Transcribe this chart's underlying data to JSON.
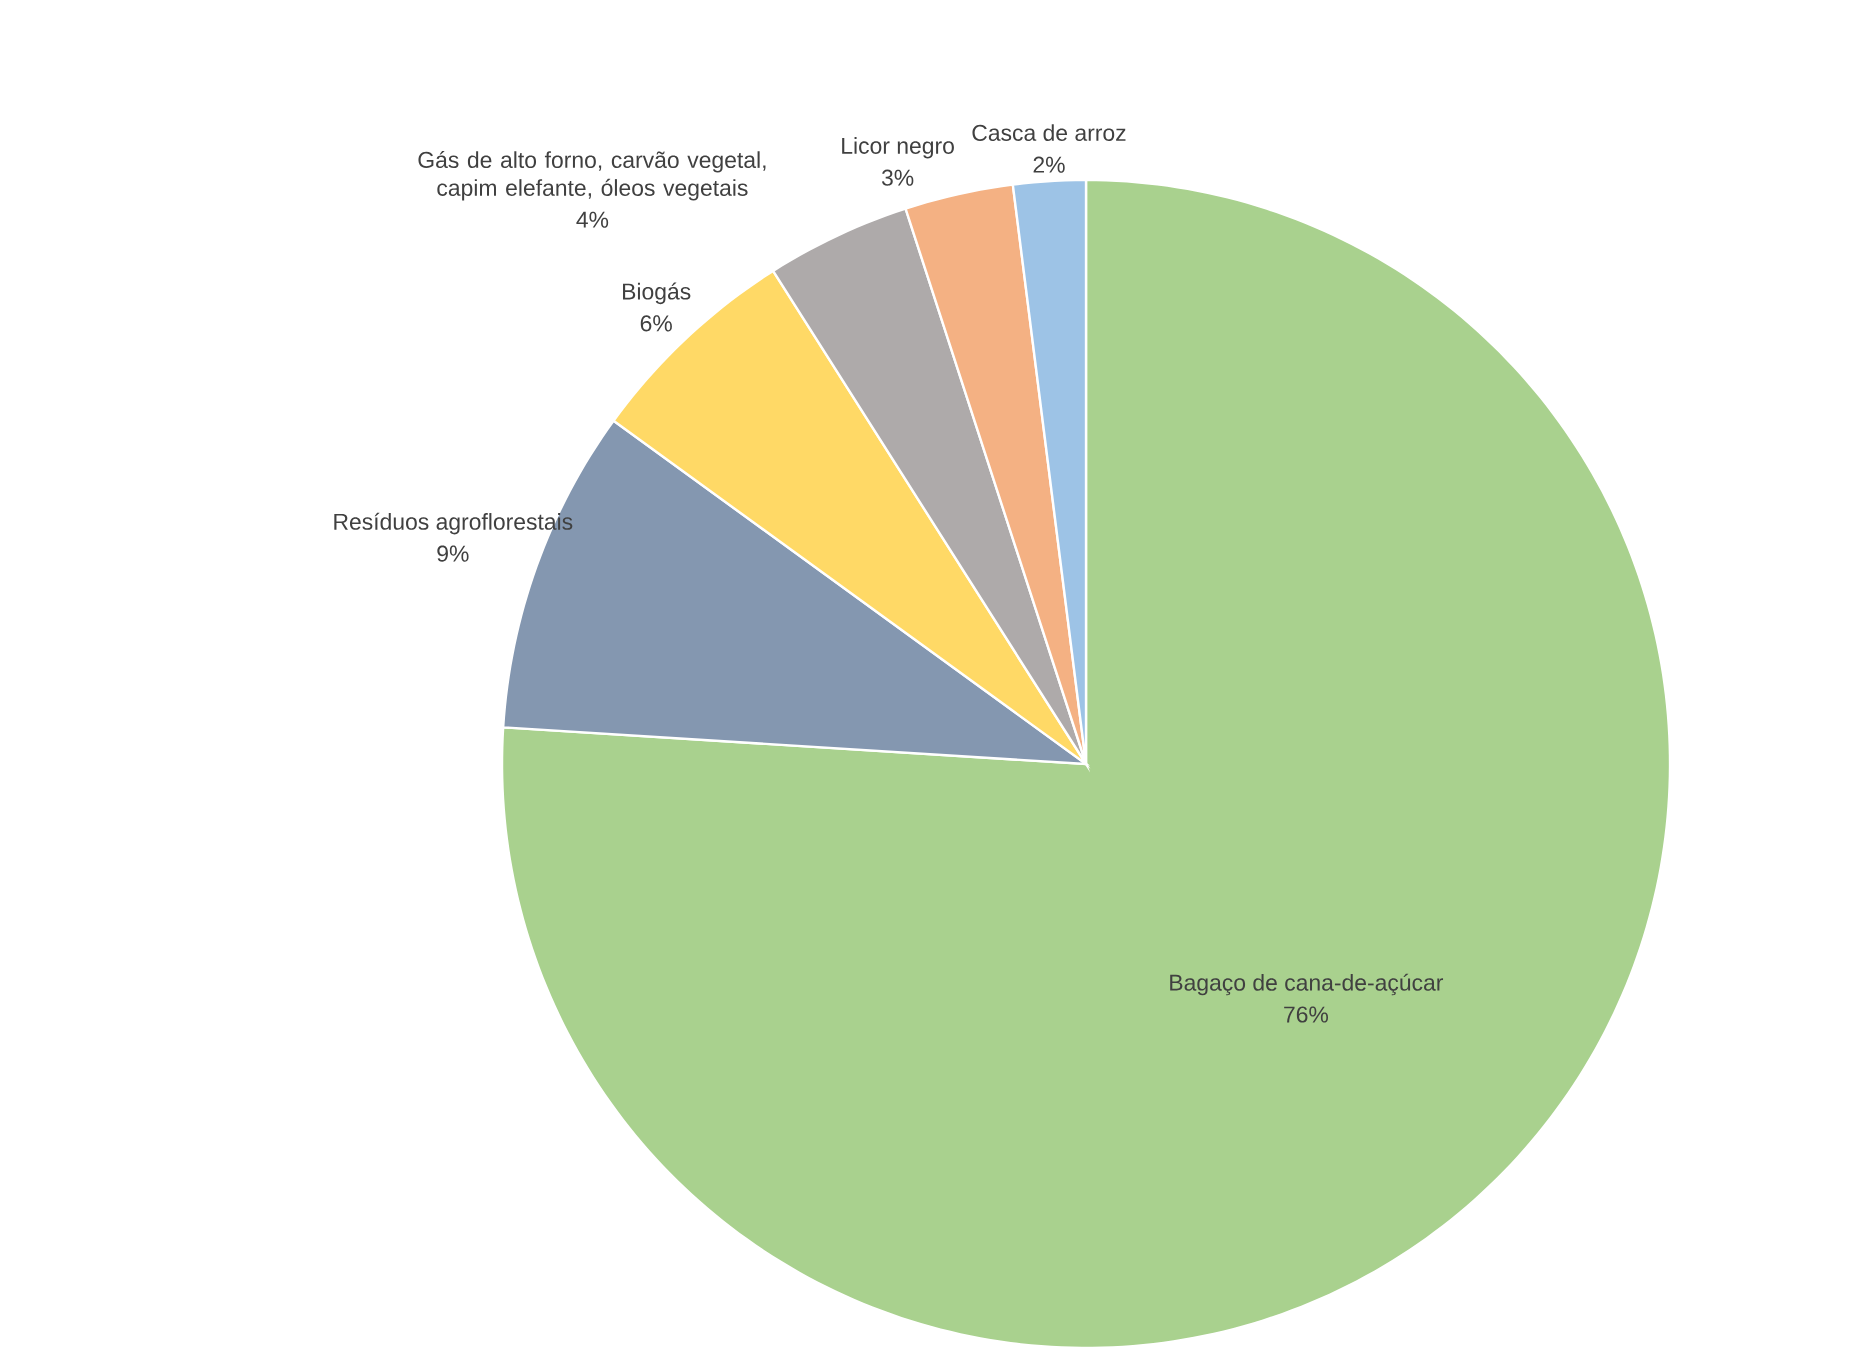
{
  "chart_data": {
    "type": "pie",
    "categories": [
      "Bagaço de cana-de-açúcar",
      "Resíduos agroflorestais",
      "Biogás",
      "Gás de alto forno, carvão vegetal, capim elefante, óleos vegetais",
      "Licor negro",
      "Casca de arroz"
    ],
    "values": [
      76,
      9,
      6,
      4,
      3,
      2
    ],
    "colors": [
      "#a9d18e",
      "#8497b0",
      "#ffd966",
      "#aeaaaa",
      "#f4b183",
      "#9dc3e6"
    ],
    "value_labels": [
      "76%",
      "9%",
      "6%",
      "4%",
      "3%",
      "2%"
    ]
  }
}
